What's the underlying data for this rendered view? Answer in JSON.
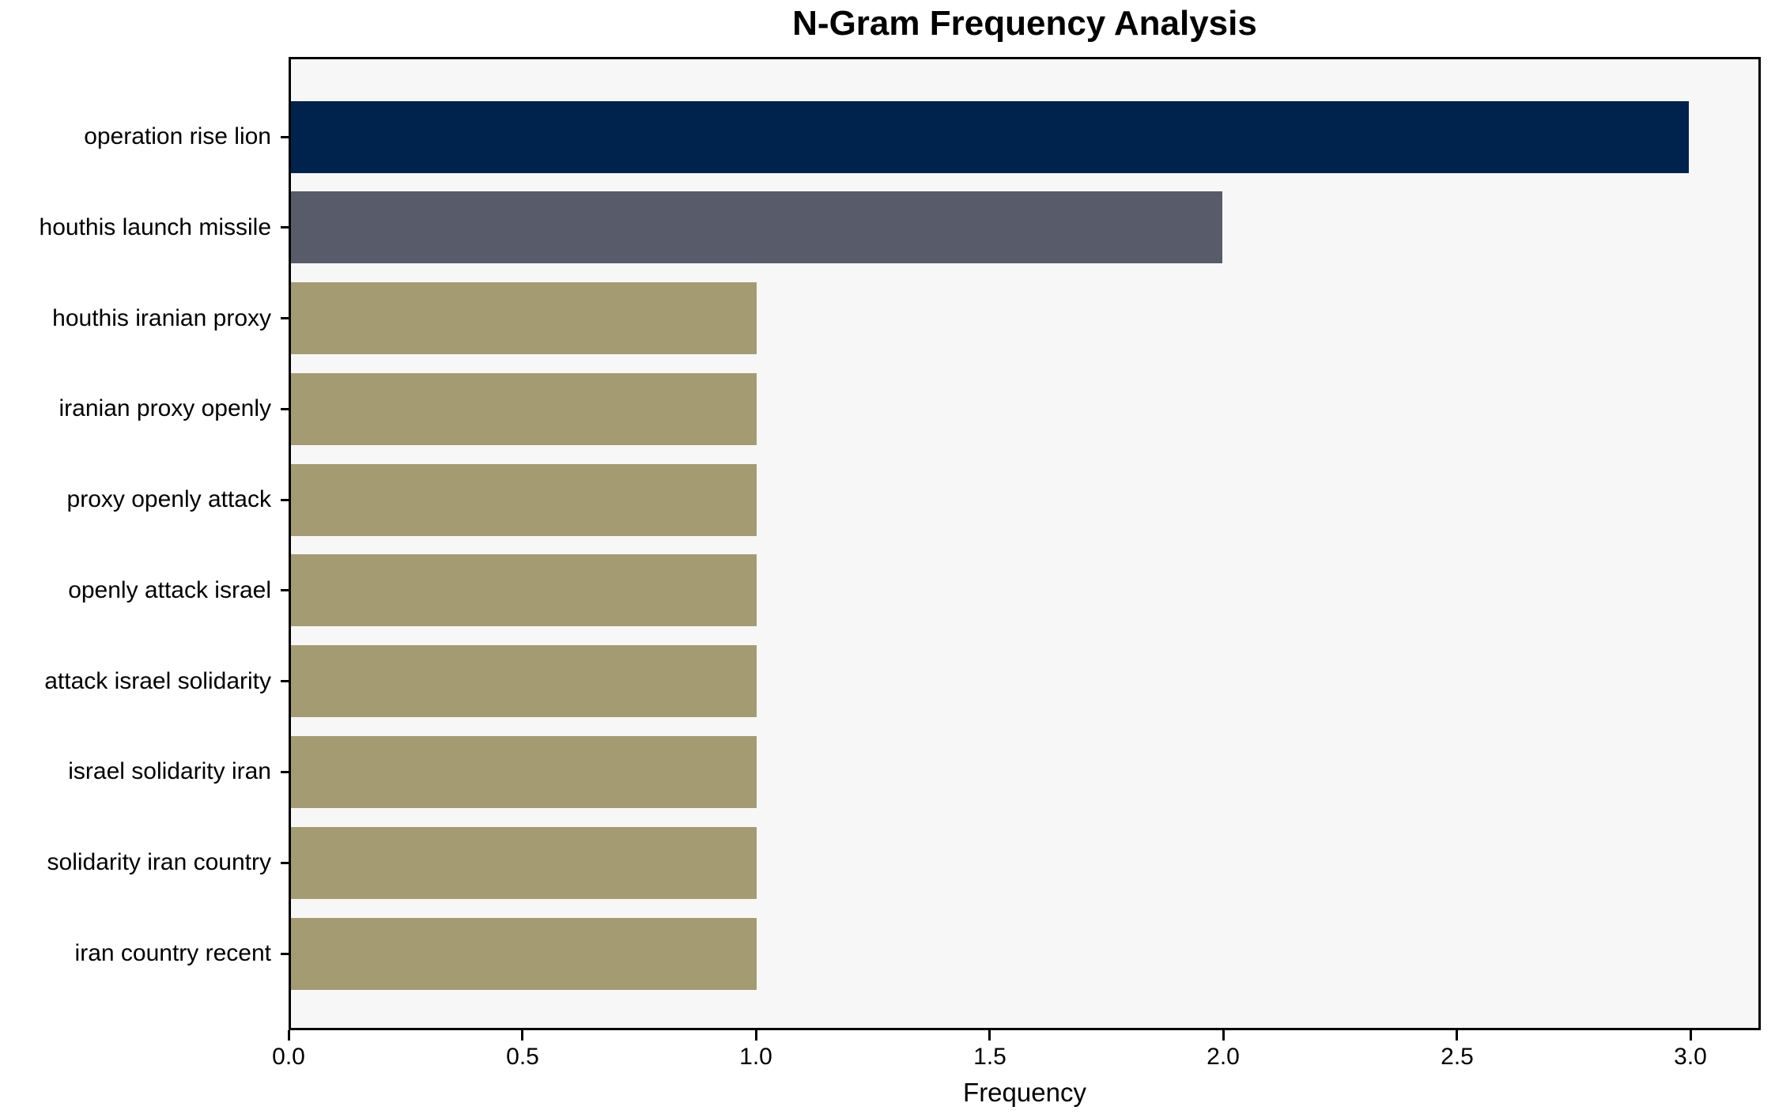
{
  "chart_data": {
    "type": "bar",
    "orientation": "horizontal",
    "title": "N-Gram Frequency Analysis",
    "xlabel": "Frequency",
    "ylabel": "",
    "categories": [
      "operation rise lion",
      "houthis launch missile",
      "houthis iranian proxy",
      "iranian proxy openly",
      "proxy openly attack",
      "openly attack israel",
      "attack israel solidarity",
      "israel solidarity iran",
      "solidarity iran country",
      "iran country recent"
    ],
    "values": [
      3,
      2,
      1,
      1,
      1,
      1,
      1,
      1,
      1,
      1
    ],
    "bar_colors": [
      "#00234e",
      "#575b6a",
      "#a49b72",
      "#a49b72",
      "#a49b72",
      "#a49b72",
      "#a49b72",
      "#a49b72",
      "#a49b72",
      "#a49b72"
    ],
    "xticks": [
      {
        "value": 0.0,
        "label": "0.0"
      },
      {
        "value": 0.5,
        "label": "0.5"
      },
      {
        "value": 1.0,
        "label": "1.0"
      },
      {
        "value": 1.5,
        "label": "1.5"
      },
      {
        "value": 2.0,
        "label": "2.0"
      },
      {
        "value": 2.5,
        "label": "2.5"
      },
      {
        "value": 3.0,
        "label": "3.0"
      }
    ],
    "xlim": [
      0,
      3.15
    ],
    "grid": false,
    "legend": null
  },
  "style": {
    "figure_background": "#ffffff",
    "plot_background": "#f7f7f7",
    "axis_color": "#000000",
    "text_color": "#000000"
  }
}
